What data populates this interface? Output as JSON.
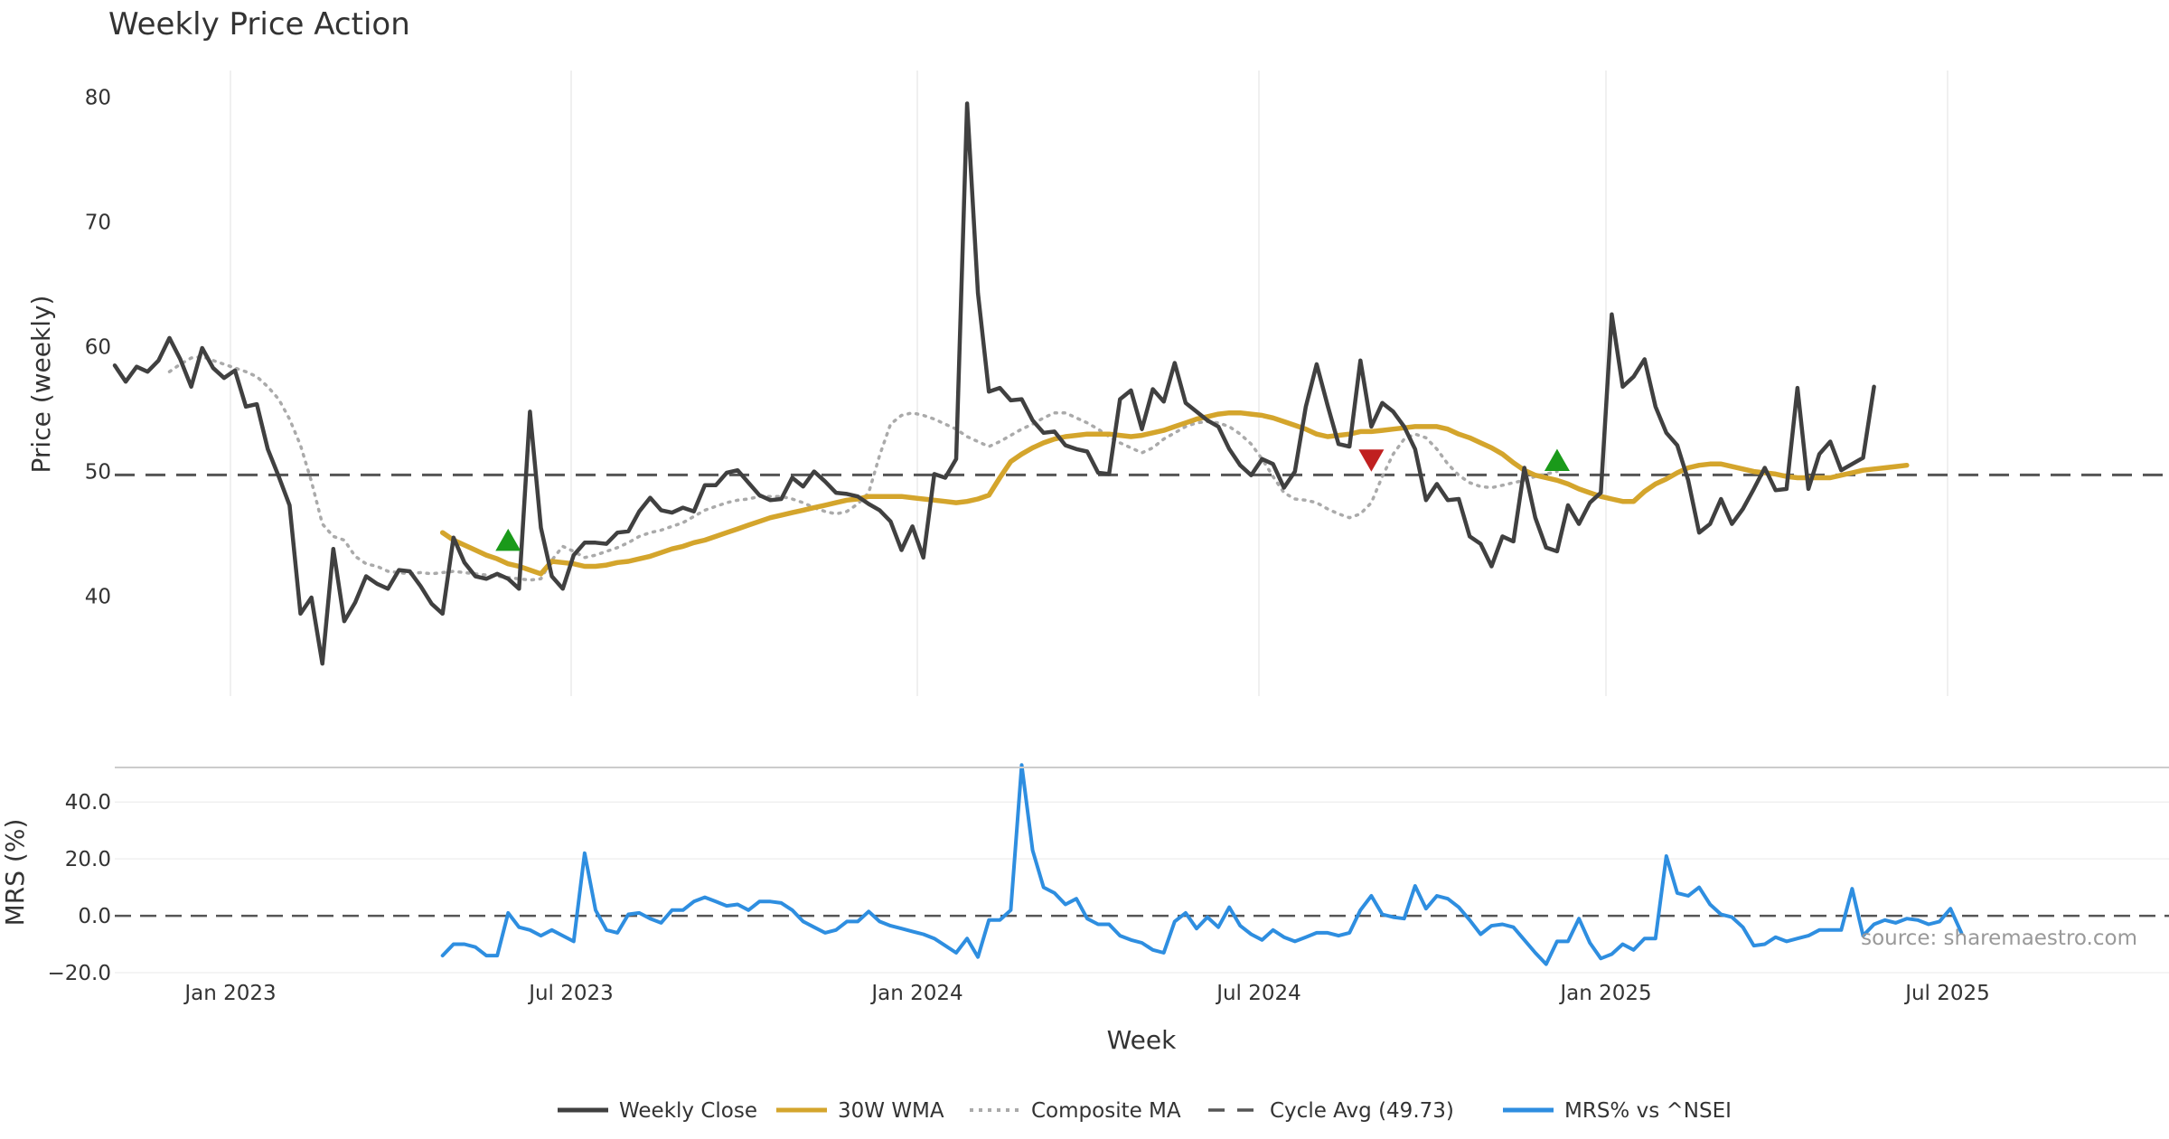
{
  "chart_data": {
    "type": "line",
    "title": "Weekly Price Action",
    "xlabel": "Week",
    "x_ticks": [
      "Jan 2023",
      "Jul 2023",
      "Jan 2024",
      "Jul 2024",
      "Jan 2025",
      "Jul 2025"
    ],
    "x_range_week_index": [
      -10,
      178
    ],
    "price_panel": {
      "ylabel": "Price (weekly)",
      "ylim": [
        32,
        82
      ],
      "y_ticks": [
        "40",
        "50",
        "60",
        "70",
        "80"
      ],
      "y_tick_values": [
        40,
        50,
        60,
        70,
        80
      ],
      "cycle_avg": 49.73
    },
    "mrs_panel": {
      "ylabel": "MRS (%)",
      "ylim": [
        -20,
        55
      ],
      "y_ticks": [
        "−20.0",
        "0.0",
        "20.0",
        "40.0"
      ],
      "y_tick_values": [
        -20,
        0,
        20,
        40
      ]
    },
    "series": [
      {
        "name": "Weekly Close",
        "color": "#404040",
        "start": -10,
        "values": [
          58.5,
          57.2,
          58.4,
          58.0,
          58.9,
          60.7,
          59.0,
          56.8,
          59.9,
          58.3,
          57.5,
          58.1,
          55.2,
          55.4,
          51.8,
          49.6,
          47.3,
          38.6,
          39.9,
          34.6,
          43.8,
          38.0,
          39.5,
          41.6,
          41.0,
          40.6,
          42.1,
          42.0,
          40.8,
          39.4,
          38.6,
          44.7,
          42.7,
          41.6,
          41.4,
          41.8,
          41.4,
          40.6,
          54.8,
          45.5,
          41.6,
          40.6,
          43.3,
          44.3,
          44.3,
          44.2,
          45.1,
          45.2,
          46.8,
          47.9,
          46.9,
          46.7,
          47.1,
          46.8,
          48.9,
          48.9,
          49.9,
          50.1,
          49.1,
          48.1,
          47.7,
          47.8,
          49.5,
          48.8,
          50.0,
          49.2,
          48.3,
          48.2,
          48.0,
          47.4,
          46.9,
          46.0,
          43.7,
          45.6,
          43.1,
          49.8,
          49.5,
          51.0,
          79.5,
          64.3,
          56.4,
          56.7,
          55.7,
          55.8,
          54.1,
          53.1,
          53.2,
          52.1,
          51.8,
          51.6,
          49.9,
          49.8,
          55.8,
          56.5,
          53.4,
          56.6,
          55.6,
          58.7,
          55.5,
          54.8,
          54.1,
          53.6,
          51.8,
          50.5,
          49.7,
          51.0,
          50.6,
          48.7,
          50.0,
          55.2,
          58.6,
          55.3,
          52.2,
          52.0,
          58.9,
          53.6,
          55.5,
          54.8,
          53.6,
          51.8,
          47.7,
          49.0,
          47.7,
          47.8,
          44.8,
          44.2,
          42.4,
          44.8,
          44.4,
          50.3,
          46.3,
          43.9,
          43.6,
          47.3,
          45.8,
          47.5,
          48.3,
          62.6,
          56.8,
          57.6,
          59.0,
          55.2,
          53.1,
          52.1,
          49.3,
          45.1,
          45.8,
          47.8,
          45.8,
          47.0,
          48.6,
          50.3,
          48.5,
          48.6,
          56.7,
          48.6,
          51.4,
          52.4,
          50.1,
          50.6,
          51.1,
          56.8
        ]
      },
      {
        "name": "30W WMA",
        "color": "#d4a52c",
        "start": 20,
        "values": [
          45.1,
          44.5,
          44.1,
          43.7,
          43.3,
          43.0,
          42.6,
          42.4,
          42.1,
          41.8,
          42.8,
          42.7,
          42.6,
          42.4,
          42.4,
          42.5,
          42.7,
          42.8,
          43.0,
          43.2,
          43.5,
          43.8,
          44.0,
          44.3,
          44.5,
          44.8,
          45.1,
          45.4,
          45.7,
          46.0,
          46.3,
          46.5,
          46.7,
          46.9,
          47.1,
          47.3,
          47.5,
          47.7,
          47.8,
          48.0,
          48.0,
          48.0,
          48.0,
          47.9,
          47.8,
          47.7,
          47.6,
          47.5,
          47.6,
          47.8,
          48.1,
          49.5,
          50.8,
          51.4,
          51.9,
          52.3,
          52.6,
          52.8,
          52.9,
          53.0,
          53.0,
          53.0,
          52.9,
          52.8,
          52.9,
          53.1,
          53.3,
          53.6,
          53.9,
          54.2,
          54.4,
          54.6,
          54.7,
          54.7,
          54.6,
          54.5,
          54.3,
          54.0,
          53.7,
          53.4,
          53.0,
          52.8,
          52.9,
          53.0,
          53.2,
          53.2,
          53.3,
          53.4,
          53.5,
          53.6,
          53.6,
          53.6,
          53.4,
          53.0,
          52.7,
          52.3,
          51.9,
          51.4,
          50.7,
          50.1,
          49.7,
          49.5,
          49.3,
          49.0,
          48.6,
          48.3,
          48.0,
          47.8,
          47.6,
          47.6,
          48.4,
          49.0,
          49.4,
          49.9,
          50.3,
          50.5,
          50.6,
          50.6,
          50.4,
          50.2,
          50.0,
          49.9,
          49.8,
          49.6,
          49.5,
          49.5,
          49.5,
          49.5,
          49.7,
          49.9,
          50.1,
          50.2,
          50.3,
          50.4,
          50.5
        ]
      },
      {
        "name": "Composite MA",
        "color": "#aaaaaa",
        "start": -5,
        "values": [
          58.0,
          58.6,
          59.1,
          59.2,
          58.9,
          58.6,
          58.3,
          58.0,
          57.6,
          56.8,
          55.8,
          54.2,
          52.1,
          49.2,
          45.8,
          44.8,
          44.5,
          43.2,
          42.6,
          42.4,
          42.0,
          41.9,
          41.8,
          41.9,
          41.8,
          41.9,
          42.0,
          41.9,
          41.8,
          41.7,
          41.6,
          41.5,
          41.4,
          41.3,
          41.4,
          42.9,
          44.0,
          43.6,
          43.1,
          43.3,
          43.6,
          43.9,
          44.3,
          44.8,
          45.1,
          45.3,
          45.6,
          45.9,
          46.4,
          46.9,
          47.2,
          47.5,
          47.7,
          47.8,
          48.0,
          48.0,
          48.0,
          47.8,
          47.5,
          47.1,
          46.8,
          46.6,
          46.8,
          47.4,
          48.3,
          51.3,
          53.8,
          54.5,
          54.7,
          54.5,
          54.2,
          53.8,
          53.4,
          52.8,
          52.4,
          52.0,
          52.4,
          52.9,
          53.4,
          53.8,
          54.3,
          54.7,
          54.7,
          54.3,
          53.9,
          53.4,
          52.8,
          52.3,
          51.9,
          51.5,
          51.9,
          52.6,
          53.1,
          53.6,
          53.9,
          54.0,
          53.9,
          53.6,
          53.0,
          52.2,
          51.0,
          49.6,
          48.3,
          47.8,
          47.7,
          47.5,
          47.0,
          46.6,
          46.3,
          46.6,
          47.5,
          49.6,
          51.4,
          52.6,
          53.0,
          52.7,
          51.8,
          50.6,
          49.7,
          49.1,
          48.8,
          48.7,
          48.9,
          49.1,
          49.3,
          49.6,
          49.8,
          50.0
        ]
      },
      {
        "name": "MRS% vs ^NSEI",
        "color": "#2e8ee0",
        "start": 20,
        "values": [
          -14,
          -10,
          -10,
          -11,
          -14,
          -14,
          1,
          -4,
          -5,
          -7,
          -5,
          -7,
          -9,
          22,
          2,
          -5,
          -6,
          0.5,
          1,
          -1,
          -2.5,
          2,
          2,
          5,
          6.5,
          5,
          3.5,
          4,
          2,
          5,
          5,
          4.5,
          2,
          -2,
          -4,
          -6,
          -5,
          -2,
          -2,
          1.5,
          -2,
          -3.5,
          -4.5,
          -5.5,
          -6.5,
          -8,
          -10.5,
          -13,
          -8,
          -14.5,
          -1.5,
          -1.5,
          2,
          53,
          23,
          10,
          8,
          4,
          6,
          -1,
          -3,
          -3,
          -7,
          -8.5,
          -9.5,
          -12,
          -13,
          -2,
          1,
          -4.5,
          -0.5,
          -4,
          3,
          -3.5,
          -6.5,
          -8.5,
          -5,
          -7.5,
          -9,
          -7.5,
          -6,
          -6,
          -7,
          -6,
          2,
          7,
          0.5,
          -0.5,
          -1,
          10.5,
          2.5,
          7,
          6,
          3,
          -1.5,
          -6.5,
          -3.5,
          -3,
          -4,
          -8.5,
          -13,
          -17,
          -9,
          -9,
          -1,
          -9.5,
          -15,
          -13.5,
          -10,
          -12,
          -8,
          -8,
          21,
          8,
          7,
          10,
          4,
          0.5,
          -0.5,
          -4,
          -10.5,
          -10,
          -7.5,
          -9,
          -8,
          -7,
          -5,
          -5,
          -5,
          9.5,
          -7,
          -3,
          -1.5,
          -2.5,
          -1,
          -1.5,
          -3,
          -2,
          2.5,
          -6
        ]
      }
    ],
    "markers": [
      {
        "type": "buy",
        "week": 26,
        "price": 44.4,
        "color": "#1a9a1a"
      },
      {
        "type": "sell",
        "week": 105,
        "price": 51.0,
        "color": "#c02020"
      },
      {
        "type": "buy",
        "week": 122,
        "price": 50.8,
        "color": "#1a9a1a"
      }
    ],
    "legend": [
      {
        "label": "Weekly Close",
        "color": "#404040",
        "style": "solid"
      },
      {
        "label": "30W WMA",
        "color": "#d4a52c",
        "style": "solid"
      },
      {
        "label": "Composite MA",
        "color": "#aaaaaa",
        "style": "dotted"
      },
      {
        "label": "Cycle Avg (49.73)",
        "color": "#555555",
        "style": "dashed"
      },
      {
        "label": "MRS% vs ^NSEI",
        "color": "#2e8ee0",
        "style": "solid"
      }
    ],
    "source": "source: sharemaestro.com"
  }
}
